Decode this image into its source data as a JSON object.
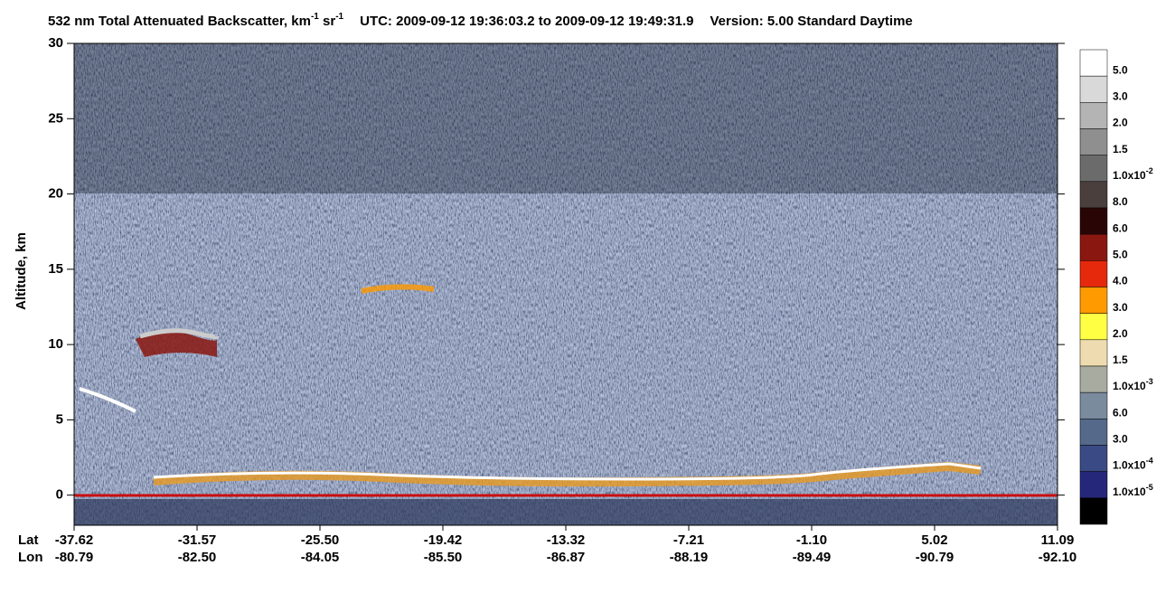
{
  "chart_data": {
    "type": "heatmap",
    "title": {
      "main": "532 nm Total Attenuated Backscatter, km",
      "exp1": "-1",
      "mid": " sr",
      "exp2": "-1",
      "utc": "UTC:  2009-09-12 19:36:03.2  to  2009-09-12 19:49:31.9",
      "version": "Version: 5.00  Standard  Daytime"
    },
    "y_label": "Altitude, km",
    "ylim": [
      -2,
      30
    ],
    "yticks": [
      0,
      5,
      10,
      15,
      20,
      25,
      30
    ],
    "x_row_labels": [
      "Lat",
      "Lon"
    ],
    "lat": [
      "-37.62",
      "-31.57",
      "-25.50",
      "-19.42",
      "-13.32",
      "-7.21",
      "-1.10",
      "5.02",
      "11.09"
    ],
    "lon": [
      "-80.79",
      "-82.50",
      "-84.05",
      "-85.50",
      "-86.87",
      "-88.19",
      "-89.49",
      "-90.79",
      "-92.10"
    ],
    "colorbar": {
      "colors": [
        "#ffffff",
        "#d9d9d9",
        "#b4b4b4",
        "#8f8f8f",
        "#6b6b6b",
        "#4a3f3c",
        "#2a0505",
        "#8a1810",
        "#e6280c",
        "#ff9a00",
        "#ffff44",
        "#eedcb0",
        "#a8aba0",
        "#7a8b9e",
        "#55698a",
        "#3a4a84",
        "#25287a",
        "#000000"
      ],
      "labels": [
        "5.0",
        "3.0",
        "2.0",
        "1.5",
        {
          "base": "1.0x10",
          "exp": "-2"
        },
        "8.0",
        "6.0",
        "5.0",
        "4.0",
        "3.0",
        "2.0",
        "1.5",
        {
          "base": "1.0x10",
          "exp": "-3"
        },
        "6.0",
        "3.0",
        {
          "base": "1.0x10",
          "exp": "-4"
        },
        {
          "base": "1.0x10",
          "exp": "-5"
        }
      ]
    }
  }
}
